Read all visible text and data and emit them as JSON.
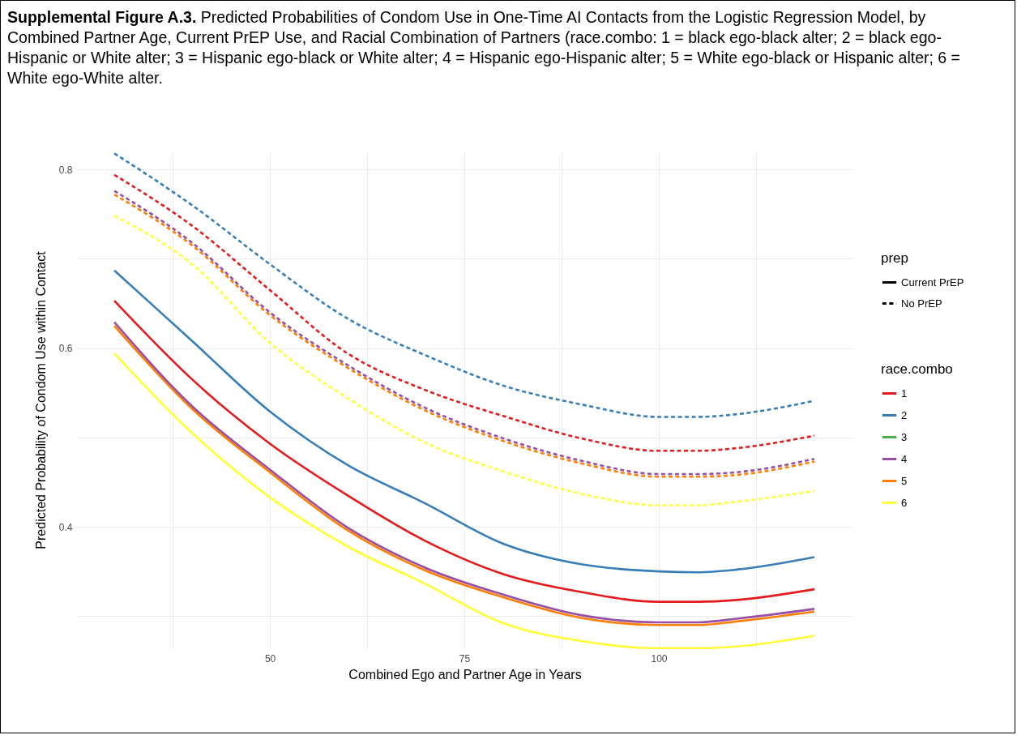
{
  "chart_data": {
    "type": "line",
    "title": "Supplemental Figure A.3.",
    "subtitle": "Predicted Probabilities of Condom Use in One-Time AI Contacts from the Logistic Regression Model, by Combined Partner Age, Current PrEP Use, and Racial Combination of Partners (race.combo: 1 = black ego-black alter; 2 = black ego-Hispanic or White alter; 3 = Hispanic ego-black or White alter; 4 = Hispanic ego-Hispanic alter; 5 = White ego-black or Hispanic alter; 6 = White ego-White alter.",
    "xlabel": "Combined Ego and Partner Age in Years",
    "ylabel": "Predicted Probability of Condom Use within Contact",
    "legend_title": [
      "prep",
      "race.combo"
    ],
    "legend": "right",
    "grid": true,
    "annotations": [
      "Current PrEP",
      "No PrEP"
    ],
    "x": [
      30,
      40,
      50,
      60,
      70,
      80,
      90,
      100,
      105,
      110,
      120
    ],
    "xlim": [
      25.2,
      124.9
    ],
    "xticks": [
      {
        "value": 37.5,
        "label": null
      },
      50,
      {
        "value": 62.5,
        "label": null
      },
      75,
      {
        "value": 87.5,
        "label": null
      },
      100,
      {
        "value": 112.5,
        "label": null
      }
    ],
    "ylim": [
      0.263,
      0.821
    ],
    "yticks": [
      {
        "value": 0.3,
        "label": null
      },
      0.4,
      {
        "value": 0.5,
        "label": null
      },
      0.6,
      {
        "value": 0.7,
        "label": null
      },
      0.8
    ],
    "series": [
      {
        "name": "3",
        "line_style": "solid",
        "color": "#4daf4a",
        "values": [
          null,
          null,
          null,
          null,
          null,
          null,
          null,
          null,
          null,
          null,
          null
        ]
      },
      {
        "name": "6",
        "line_style": "solid",
        "color": "#ffff33",
        "values": [
          0.594,
          0.505,
          0.433,
          0.378,
          0.336,
          0.292,
          0.272,
          0.264,
          0.264,
          0.266,
          0.278
        ]
      },
      {
        "name": "5",
        "line_style": "solid",
        "color": "#ff7f00",
        "values": [
          0.625,
          0.532,
          0.461,
          0.396,
          0.351,
          0.321,
          0.298,
          0.29,
          0.29,
          0.294,
          0.305
        ]
      },
      {
        "name": "4",
        "line_style": "solid",
        "color": "#984ea3",
        "values": [
          0.629,
          0.535,
          0.464,
          0.399,
          0.354,
          0.324,
          0.301,
          0.293,
          0.293,
          0.297,
          0.308
        ]
      },
      {
        "name": "1",
        "line_style": "solid",
        "color": "#e41a1c",
        "values": [
          0.653,
          0.565,
          0.493,
          0.435,
          0.384,
          0.347,
          0.327,
          0.316,
          0.316,
          0.318,
          0.33
        ]
      },
      {
        "name": "2",
        "line_style": "solid",
        "color": "#377eb8",
        "values": [
          0.687,
          0.608,
          0.529,
          0.469,
          0.426,
          0.381,
          0.358,
          0.35,
          0.349,
          0.352,
          0.366
        ]
      },
      {
        "line_style": "dashed",
        "color": "#ffff33",
        "values": [
          0.748,
          0.694,
          0.606,
          0.544,
          0.494,
          0.462,
          0.437,
          0.424,
          0.424,
          0.428,
          0.44
        ]
      },
      {
        "line_style": "dashed",
        "color": "#ff7f00",
        "values": [
          0.772,
          0.715,
          0.637,
          0.578,
          0.53,
          0.496,
          0.471,
          0.456,
          0.456,
          0.458,
          0.473
        ]
      },
      {
        "line_style": "dashed",
        "color": "#984ea3",
        "values": [
          0.776,
          0.718,
          0.64,
          0.581,
          0.533,
          0.499,
          0.474,
          0.459,
          0.459,
          0.461,
          0.476
        ]
      },
      {
        "line_style": "dashed",
        "color": "#e41a1c",
        "values": [
          0.794,
          0.737,
          0.665,
          0.594,
          0.553,
          0.524,
          0.499,
          0.485,
          0.485,
          0.488,
          0.502
        ]
      },
      {
        "line_style": "dashed",
        "color": "#377eb8",
        "values": [
          0.818,
          0.76,
          0.694,
          0.633,
          0.592,
          0.558,
          0.537,
          0.523,
          0.523,
          0.526,
          0.541
        ]
      }
    ]
  }
}
